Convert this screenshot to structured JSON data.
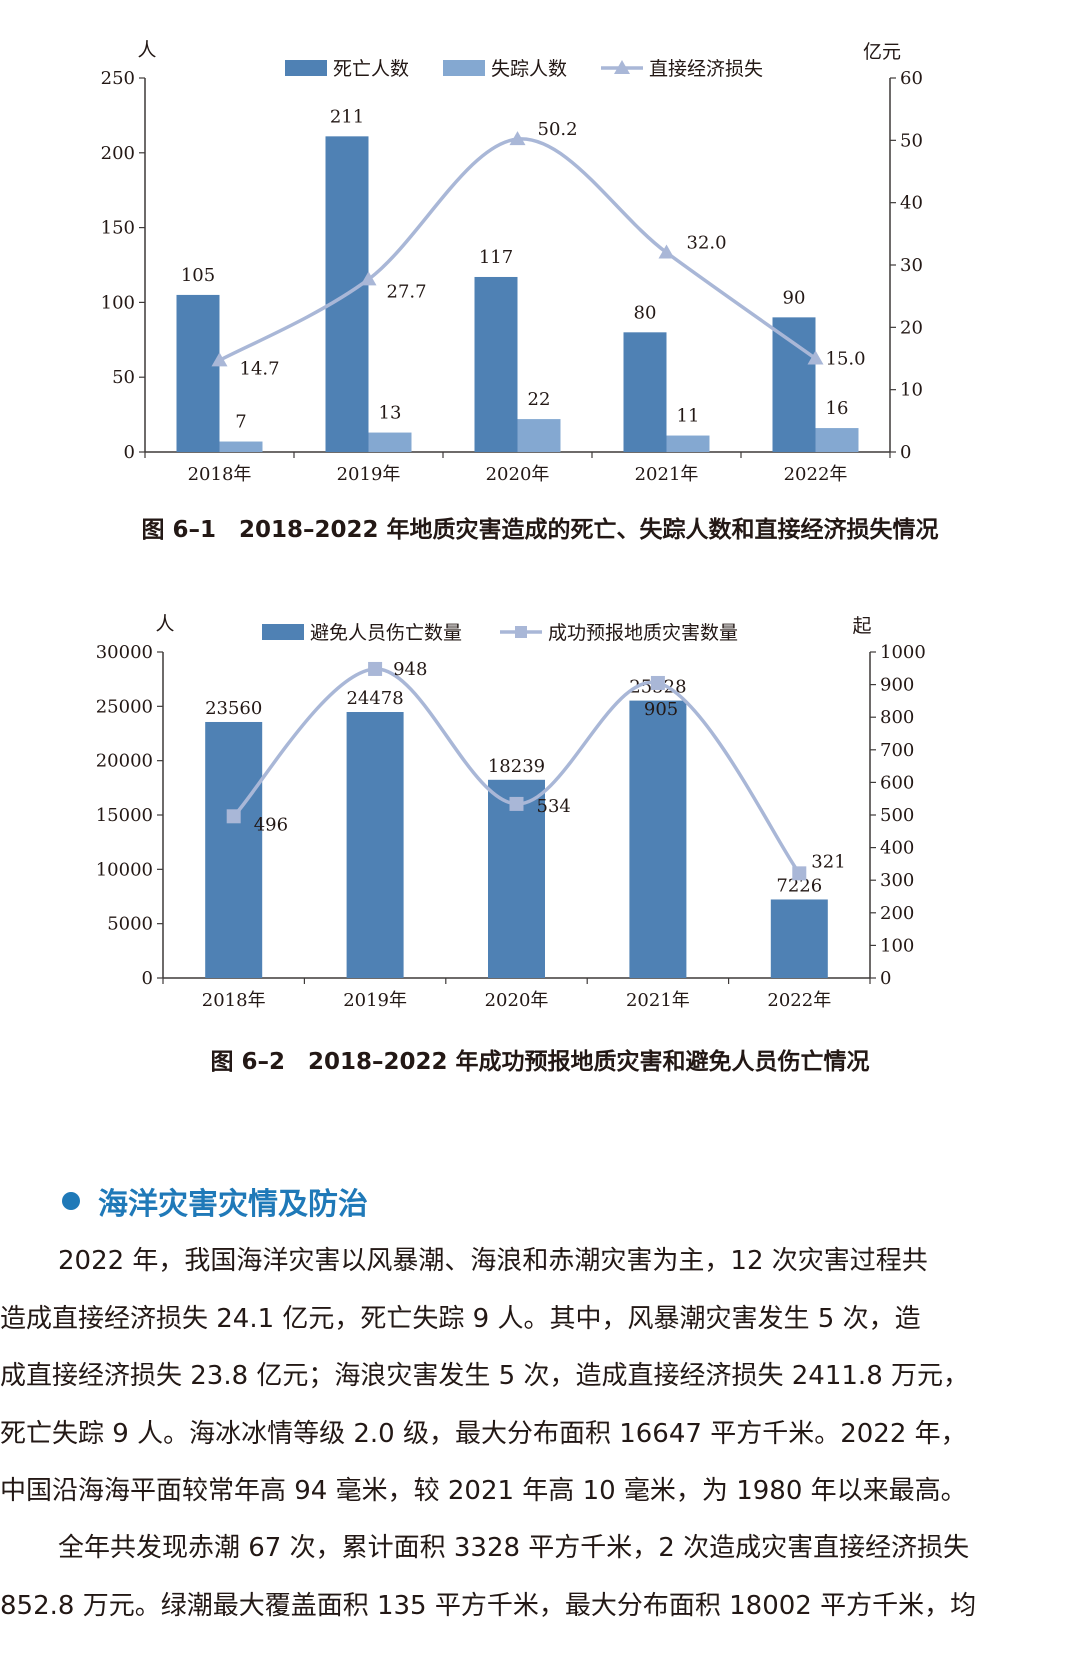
{
  "figure1": {
    "caption": "图 6–1　2018–2022 年地质灾害造成的死亡、失踪人数和直接经济损失情况",
    "chart_data": {
      "type": "bar",
      "categories": [
        "2018年",
        "2019年",
        "2020年",
        "2021年",
        "2022年"
      ],
      "series": [
        {
          "name": "死亡人数",
          "type": "bar",
          "axis": "left",
          "values": [
            105,
            211,
            117,
            80,
            90
          ],
          "color": "#4f81b4"
        },
        {
          "name": "失踪人数",
          "type": "bar",
          "axis": "left",
          "values": [
            7,
            13,
            22,
            11,
            16
          ],
          "color": "#84a8d1"
        },
        {
          "name": "直接经济损失",
          "type": "line",
          "axis": "right",
          "values": [
            14.7,
            27.7,
            50.2,
            32.0,
            15.0
          ],
          "color": "#a9b7d7"
        }
      ],
      "y_left": {
        "unit": "人",
        "ticks": [
          0,
          50,
          100,
          150,
          200,
          250
        ],
        "range": [
          0,
          250
        ]
      },
      "y_right": {
        "unit": "亿元",
        "ticks": [
          0,
          10,
          20,
          30,
          40,
          50,
          60
        ],
        "range": [
          0,
          60
        ]
      },
      "line_labels": [
        "14.7",
        "27.7",
        "50.2",
        "32.0",
        "15.0"
      ],
      "legend_position": "top-center"
    }
  },
  "figure2": {
    "caption": "图 6–2　2018–2022 年成功预报地质灾害和避免人员伤亡情况",
    "chart_data": {
      "type": "bar",
      "categories": [
        "2018年",
        "2019年",
        "2020年",
        "2021年",
        "2022年"
      ],
      "series": [
        {
          "name": "避免人员伤亡数量",
          "type": "bar",
          "axis": "left",
          "values": [
            23560,
            24478,
            18239,
            25528,
            7226
          ],
          "color": "#4f81b4"
        },
        {
          "name": "成功预报地质灾害数量",
          "type": "line",
          "axis": "right",
          "values": [
            496,
            948,
            534,
            905,
            321
          ],
          "color": "#a9b7d7"
        }
      ],
      "y_left": {
        "unit": "人",
        "ticks": [
          0,
          5000,
          10000,
          15000,
          20000,
          25000,
          30000
        ],
        "range": [
          0,
          30000
        ]
      },
      "y_right": {
        "unit": "起",
        "ticks": [
          0,
          100,
          200,
          300,
          400,
          500,
          600,
          700,
          800,
          900,
          1000
        ],
        "range": [
          0,
          1000
        ]
      },
      "legend_position": "top-center"
    }
  },
  "section": {
    "title": "海洋灾害灾情及防治",
    "paragraph1": [
      "2022 年，我国海洋灾害以风暴潮、海浪和赤潮灾害为主，12 次灾害过程共",
      "造成直接经济损失 24.1 亿元，死亡失踪 9 人。其中，风暴潮灾害发生 5 次，造",
      "成直接经济损失 23.8 亿元；海浪灾害发生 5 次，造成直接经济损失 2411.8 万元，",
      "死亡失踪 9 人。海冰冰情等级 2.0 级，最大分布面积 16647 平方千米。2022 年，",
      "中国沿海海平面较常年高 94 毫米，较 2021 年高 10 毫米，为 1980 年以来最高。"
    ],
    "paragraph2": [
      "全年共发现赤潮 67 次，累计面积 3328 平方千米，2 次造成灾害直接经济损失",
      "852.8 万元。绿潮最大覆盖面积 135 平方千米，最大分布面积 18002 平方千米，均"
    ]
  }
}
